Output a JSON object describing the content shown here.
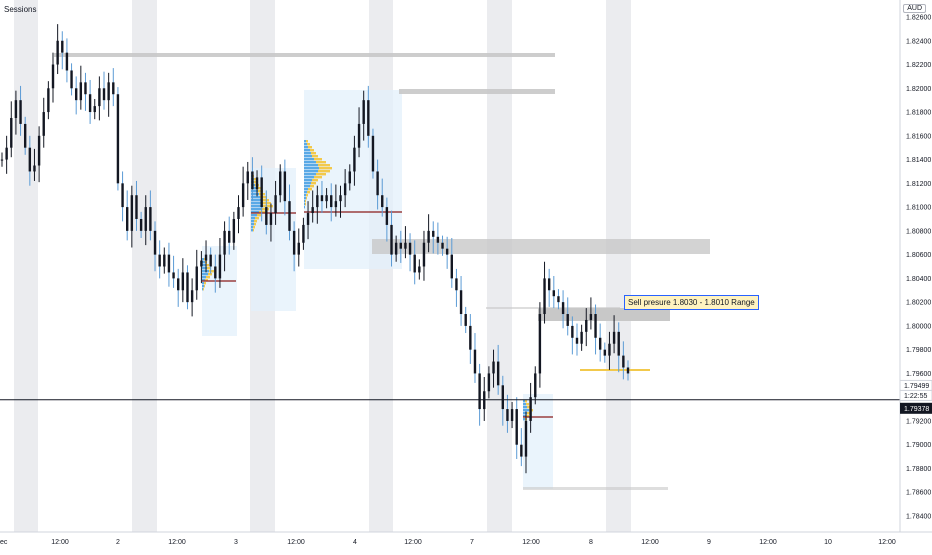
{
  "header": {
    "indicator_label": "Sessions",
    "currency": "AUD"
  },
  "colors": {
    "session_band": "#ebecef",
    "candle": "#131722",
    "wick_down": "#5b9bd5",
    "profile_blue": "#5aa9e6",
    "profile_yellow": "#f2c94c",
    "poc": "#8b1a1a",
    "zone_gray": "#c8c8c8",
    "range_box": "#e3f0fb",
    "crosshair": "#131722",
    "accent": "#2962ff"
  },
  "price_axis": {
    "ticks": [
      "1.82600",
      "1.82400",
      "1.82200",
      "1.82000",
      "1.81800",
      "1.81600",
      "1.81400",
      "1.81200",
      "1.81000",
      "1.80800",
      "1.80600",
      "1.80400",
      "1.80200",
      "1.80000",
      "1.79800",
      "1.79600",
      "1.79200",
      "1.79000",
      "1.78800",
      "1.78600",
      "1.78400"
    ],
    "tick_values": [
      1.826,
      1.824,
      1.822,
      1.82,
      1.818,
      1.816,
      1.814,
      1.812,
      1.81,
      1.808,
      1.806,
      1.804,
      1.802,
      1.8,
      1.798,
      1.796,
      1.792,
      1.79,
      1.788,
      1.786,
      1.784
    ],
    "last_price_label": "1.79499",
    "countdown_label": "1:22:55",
    "crosshair_label": "1.79378"
  },
  "time_axis": {
    "labels": [
      "ec",
      "12:00",
      "2",
      "12:00",
      "3",
      "12:00",
      "4",
      "12:00",
      "7",
      "12:00",
      "8",
      "12:00",
      "9",
      "12:00",
      "10",
      "12:00"
    ]
  },
  "annotation": {
    "text": "Sell presure 1.8030 - 1.8010 Range"
  },
  "chart_data": {
    "type": "candlestick",
    "symbol_currency": "AUD",
    "ylim": [
      1.7832,
      1.8276
    ],
    "price_ticks": [
      1.826,
      1.824,
      1.822,
      1.82,
      1.818,
      1.816,
      1.814,
      1.812,
      1.81,
      1.808,
      1.806,
      1.804,
      1.802,
      1.8,
      1.798,
      1.796,
      1.792,
      1.79,
      1.788,
      1.786,
      1.784
    ],
    "last_price": 1.79499,
    "crosshair_price": 1.79378,
    "x_tick_labels": [
      "ec",
      "12:00",
      "2",
      "12:00",
      "3",
      "12:00",
      "4",
      "12:00",
      "7",
      "12:00",
      "8",
      "12:00",
      "9",
      "12:00",
      "10",
      "12:00"
    ],
    "close_path": [
      1.814,
      1.815,
      1.8175,
      1.819,
      1.817,
      1.815,
      1.813,
      1.8135,
      1.816,
      1.818,
      1.82,
      1.822,
      1.824,
      1.823,
      1.8215,
      1.82,
      1.819,
      1.8205,
      1.8195,
      1.818,
      1.8185,
      1.82,
      1.819,
      1.8205,
      1.8195,
      1.812,
      1.81,
      1.808,
      1.811,
      1.809,
      1.808,
      1.81,
      1.808,
      1.806,
      1.805,
      1.806,
      1.8045,
      1.804,
      1.803,
      1.8045,
      1.802,
      1.803,
      1.805,
      1.8055,
      1.806,
      1.805,
      1.804,
      1.806,
      1.808,
      1.807,
      1.809,
      1.81,
      1.812,
      1.813,
      1.8115,
      1.8125,
      1.81,
      1.8085,
      1.8095,
      1.811,
      1.813,
      1.8105,
      1.808,
      1.806,
      1.807,
      1.8085,
      1.8095,
      1.81,
      1.811,
      1.8105,
      1.811,
      1.81,
      1.8105,
      1.811,
      1.812,
      1.813,
      1.815,
      1.817,
      1.819,
      1.816,
      1.813,
      1.811,
      1.81,
      1.8085,
      1.806,
      1.807,
      1.8065,
      1.807,
      1.806,
      1.8045,
      1.805,
      1.807,
      1.808,
      1.8075,
      1.807,
      1.8065,
      1.806,
      1.804,
      1.803,
      1.801,
      1.8,
      1.798,
      1.796,
      1.793,
      1.7945,
      1.796,
      1.797,
      1.795,
      1.793,
      1.792,
      1.793,
      1.79,
      1.789,
      1.792,
      1.794,
      1.796,
      1.801,
      1.804,
      1.803,
      1.8025,
      1.802,
      1.801,
      1.8,
      1.799,
      1.7985,
      1.7995,
      1.8005,
      1.801,
      1.799,
      1.798,
      1.7975,
      1.7985,
      1.7995,
      1.7975,
      1.7965,
      1.796
    ]
  }
}
